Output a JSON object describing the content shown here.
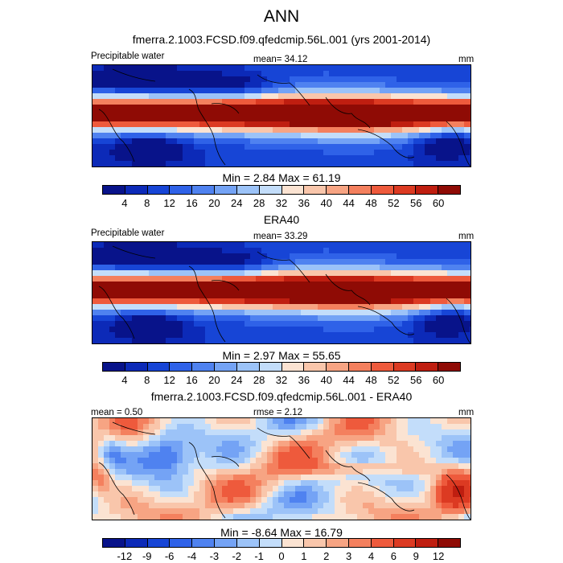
{
  "title": "ANN",
  "panels": [
    {
      "header": "fmerra.2.1003.FCSD.f09.qfedcmip.56L.001 (yrs 2001-2014)",
      "left_label": "Precipitable water",
      "mean_text": "mean=  34.12",
      "units": "mm",
      "minmax": "Min =   2.84 Max =  61.19",
      "scale": "abs",
      "min": 2.84,
      "max": 61.19,
      "mean": 34.12
    },
    {
      "header": "ERA40",
      "left_label": "Precipitable water",
      "mean_text": "mean=  33.29",
      "units": "mm",
      "minmax": "Min =   2.97 Max =  55.65",
      "scale": "abs",
      "min": 2.97,
      "max": 55.65,
      "mean": 33.29
    },
    {
      "header": "fmerra.2.1003.FCSD.f09.qfedcmip.56L.001 - ERA40",
      "left_label": "mean =   0.50",
      "mean_text": "rmse =   2.12",
      "units": "mm",
      "minmax": "Min =  -8.64 Max =  16.79",
      "scale": "diff",
      "min": -8.64,
      "max": 16.79,
      "mean": 0.5,
      "rmse": 2.12
    }
  ],
  "colorbars": {
    "abs": {
      "ticks": [
        "4",
        "8",
        "12",
        "16",
        "20",
        "24",
        "28",
        "32",
        "36",
        "40",
        "44",
        "48",
        "52",
        "56",
        "60"
      ],
      "colors": [
        "#08138a",
        "#0c2ab8",
        "#1745d6",
        "#2f62e8",
        "#4f82f0",
        "#74a3f5",
        "#9cc3f8",
        "#c3ddfa",
        "#fbe3d2",
        "#f9c6ab",
        "#f7a483",
        "#f4805e",
        "#ee5a3c",
        "#dc3a22",
        "#bf1e10",
        "#8f0b05"
      ]
    },
    "diff": {
      "ticks": [
        "-12",
        "-9",
        "-6",
        "-4",
        "-3",
        "-2",
        "-1",
        "0",
        "1",
        "2",
        "3",
        "4",
        "6",
        "9",
        "12"
      ],
      "colors": [
        "#08138a",
        "#0c2ab8",
        "#1745d6",
        "#2f62e8",
        "#4f82f0",
        "#74a3f5",
        "#9cc3f8",
        "#c3ddfa",
        "#fbe3d2",
        "#f9c6ab",
        "#f7a483",
        "#f4805e",
        "#ee5a3c",
        "#dc3a22",
        "#bf1e10",
        "#8f0b05"
      ]
    }
  }
}
